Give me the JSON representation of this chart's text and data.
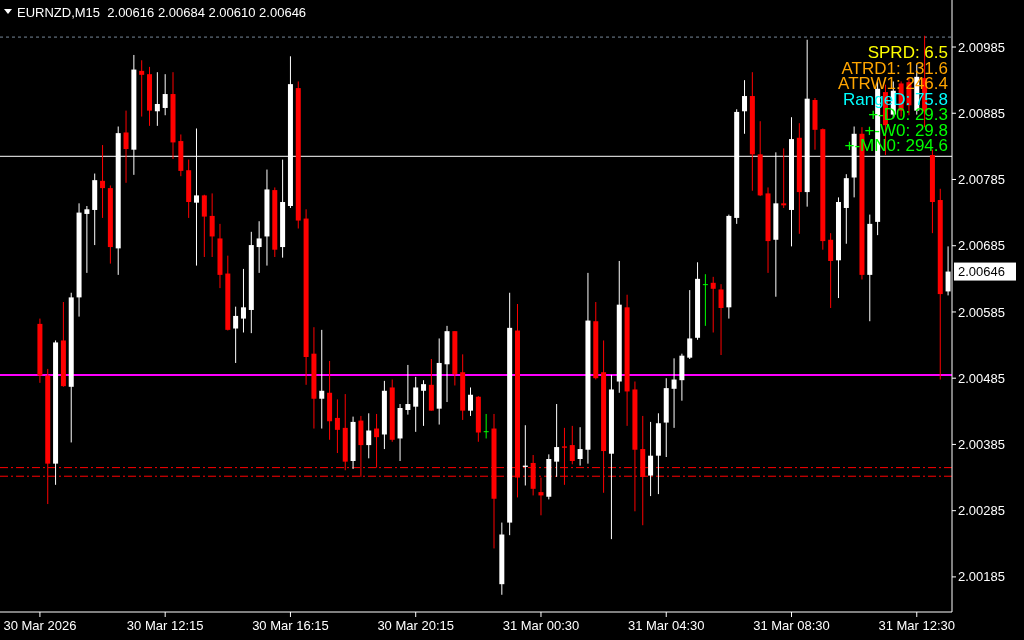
{
  "chart_data": {
    "type": "candlestick",
    "title": "EURNZD,M15  2.00616 2.00684 2.00610 2.00646",
    "categories": [
      "30 Mar 2026",
      null,
      null,
      null,
      null,
      null,
      null,
      null,
      null,
      null,
      null,
      null,
      null,
      null,
      null,
      null,
      "30 Mar 12:15",
      null,
      null,
      null,
      null,
      null,
      null,
      null,
      null,
      null,
      null,
      null,
      null,
      null,
      null,
      null,
      "30 Mar 16:15",
      null,
      null,
      null,
      null,
      null,
      null,
      null,
      null,
      null,
      null,
      null,
      null,
      null,
      null,
      null,
      "30 Mar 20:15",
      null,
      null,
      null,
      null,
      null,
      null,
      null,
      null,
      null,
      null,
      null,
      null,
      null,
      null,
      null,
      "31 Mar 00:30",
      null,
      null,
      null,
      null,
      null,
      null,
      null,
      null,
      null,
      null,
      null,
      null,
      null,
      null,
      null,
      "31 Mar 04:30",
      null,
      null,
      null,
      null,
      null,
      null,
      null,
      null,
      null,
      null,
      null,
      null,
      null,
      null,
      null,
      "31 Mar 08:30",
      null,
      null,
      null,
      null,
      null,
      null,
      null,
      null,
      null,
      null,
      null,
      null,
      null,
      null,
      null,
      "31 Mar 12:30",
      null,
      null,
      null,
      null
    ],
    "ohlc": [
      [
        2.00567,
        2.00575,
        2.00478,
        2.00489
      ],
      [
        2.00489,
        2.00499,
        2.00295,
        2.00356
      ],
      [
        2.00356,
        2.00542,
        2.00324,
        2.00539
      ],
      [
        2.00542,
        2.006,
        2.00472,
        2.00473
      ],
      [
        2.00472,
        2.00614,
        2.00388,
        2.00607
      ],
      [
        2.00607,
        2.00749,
        2.00578,
        2.00735
      ],
      [
        2.00733,
        2.00745,
        2.00644,
        2.0074
      ],
      [
        2.00739,
        2.00794,
        2.00686,
        2.00784
      ],
      [
        2.00783,
        2.00837,
        2.00727,
        2.00772
      ],
      [
        2.00772,
        2.00776,
        2.00658,
        2.00683
      ],
      [
        2.00681,
        2.00865,
        2.00641,
        2.00855
      ],
      [
        2.00856,
        2.00889,
        2.0078,
        2.00831
      ],
      [
        2.0083,
        2.00973,
        2.00792,
        2.00951
      ],
      [
        2.00949,
        2.00965,
        2.0088,
        2.00943
      ],
      [
        2.00944,
        2.00955,
        2.00866,
        2.00889
      ],
      [
        2.00888,
        2.00947,
        2.00866,
        2.00899
      ],
      [
        2.00893,
        2.00944,
        2.00882,
        2.00914
      ],
      [
        2.00914,
        2.00947,
        2.00816,
        2.00841
      ],
      [
        2.00843,
        2.00853,
        2.0079,
        2.00798
      ],
      [
        2.00799,
        2.00815,
        2.00727,
        2.00751
      ],
      [
        2.0075,
        2.00862,
        2.00655,
        2.00761
      ],
      [
        2.00761,
        2.00762,
        2.00668,
        2.00729
      ],
      [
        2.0073,
        2.00764,
        2.00668,
        2.00699
      ],
      [
        2.00696,
        2.00718,
        2.00621,
        2.00641
      ],
      [
        2.00643,
        2.0067,
        2.00557,
        2.00558
      ],
      [
        2.0056,
        2.00593,
        2.00508,
        2.00579
      ],
      [
        2.00575,
        2.0065,
        2.00554,
        2.00592
      ],
      [
        2.00588,
        2.00706,
        2.00553,
        2.00686
      ],
      [
        2.00683,
        2.00722,
        2.00644,
        2.00696
      ],
      [
        2.00699,
        2.008,
        2.00655,
        2.0077
      ],
      [
        2.00769,
        2.00773,
        2.00668,
        2.00679
      ],
      [
        2.00683,
        2.00815,
        2.00667,
        2.00751
      ],
      [
        2.00745,
        2.00971,
        2.00742,
        2.00929
      ],
      [
        2.00923,
        2.00933,
        2.00711,
        2.00723
      ],
      [
        2.00726,
        2.0074,
        2.00475,
        2.00517
      ],
      [
        2.00522,
        2.00562,
        2.00409,
        2.00454
      ],
      [
        2.00454,
        2.00558,
        2.00409,
        2.00466
      ],
      [
        2.00463,
        2.00511,
        2.00392,
        2.0042
      ],
      [
        2.00425,
        2.00453,
        2.00372,
        2.00407
      ],
      [
        2.0041,
        2.00461,
        2.00346,
        2.00359
      ],
      [
        2.0036,
        2.00427,
        2.00348,
        2.00419
      ],
      [
        2.00421,
        2.00428,
        2.00336,
        2.00384
      ],
      [
        2.00384,
        2.00432,
        2.00364,
        2.00406
      ],
      [
        2.00409,
        2.00431,
        2.0035,
        2.00396
      ],
      [
        2.004,
        2.00481,
        2.00378,
        2.00466
      ],
      [
        2.00471,
        2.00483,
        2.00389,
        2.00392
      ],
      [
        2.00394,
        2.00446,
        2.0036,
        2.0044
      ],
      [
        2.00437,
        2.00505,
        2.0043,
        2.00446
      ],
      [
        2.00442,
        2.00487,
        2.00404,
        2.00471
      ],
      [
        2.00466,
        2.00482,
        2.00413,
        2.00476
      ],
      [
        2.00475,
        2.00514,
        2.00436,
        2.00436
      ],
      [
        2.00439,
        2.00545,
        2.00415,
        2.00508
      ],
      [
        2.00506,
        2.00564,
        2.00449,
        2.00556
      ],
      [
        2.00556,
        2.00556,
        2.00474,
        2.00491
      ],
      [
        2.00494,
        2.00521,
        2.00422,
        2.00436
      ],
      [
        2.00436,
        2.00471,
        2.00428,
        2.0046
      ],
      [
        2.00457,
        2.00458,
        2.00389,
        2.00403
      ],
      [
        2.00405,
        2.00431,
        2.00394,
        2.00405
      ],
      [
        2.00409,
        2.00431,
        2.00228,
        2.00303
      ],
      [
        2.00174,
        2.00267,
        2.00158,
        2.00249
      ],
      [
        2.00267,
        2.00614,
        2.00248,
        2.00561
      ],
      [
        2.00557,
        2.00597,
        2.00305,
        2.00335
      ],
      [
        2.00351,
        2.00414,
        2.00323,
        2.00353
      ],
      [
        2.00357,
        2.00369,
        2.00308,
        2.00318
      ],
      [
        2.00313,
        2.00335,
        2.00278,
        2.00308
      ],
      [
        2.00306,
        2.0037,
        2.00302,
        2.00363
      ],
      [
        2.00359,
        2.00446,
        2.00336,
        2.00381
      ],
      [
        2.00382,
        2.0041,
        2.00324,
        2.0038
      ],
      [
        2.00384,
        2.00413,
        2.00355,
        2.0036
      ],
      [
        2.00363,
        2.00411,
        2.00353,
        2.00378
      ],
      [
        2.00377,
        2.00644,
        2.00356,
        2.00572
      ],
      [
        2.00571,
        2.006,
        2.00483,
        2.00485
      ],
      [
        2.00494,
        2.00542,
        2.00312,
        2.00375
      ],
      [
        2.00371,
        2.0049,
        2.00242,
        2.00468
      ],
      [
        2.0048,
        2.00662,
        2.00463,
        2.00596
      ],
      [
        2.00592,
        2.00611,
        2.00413,
        2.00465
      ],
      [
        2.00468,
        2.0048,
        2.00284,
        2.00377
      ],
      [
        2.00378,
        2.00428,
        2.00263,
        2.00336
      ],
      [
        2.00338,
        2.00419,
        2.00307,
        2.00368
      ],
      [
        2.00368,
        2.00432,
        2.0031,
        2.00417
      ],
      [
        2.00418,
        2.00485,
        2.00366,
        2.0047
      ],
      [
        2.00469,
        2.00515,
        2.0041,
        2.00483
      ],
      [
        2.00482,
        2.00522,
        2.00451,
        2.00519
      ],
      [
        2.00516,
        2.00618,
        2.00514,
        2.00545
      ],
      [
        2.00546,
        2.0066,
        2.00543,
        2.00635
      ],
      [
        2.00627,
        2.00642,
        2.00564,
        2.00627
      ],
      [
        2.00629,
        2.00638,
        2.00554,
        2.0062
      ],
      [
        2.00619,
        2.00627,
        2.0052,
        2.00591
      ],
      [
        2.00592,
        2.00732,
        2.00575,
        2.0073
      ],
      [
        2.00727,
        2.00891,
        2.00718,
        2.00887
      ],
      [
        2.00888,
        2.00935,
        2.00854,
        2.00911
      ],
      [
        2.00911,
        2.00947,
        2.00768,
        2.00823
      ],
      [
        2.00823,
        2.00873,
        2.0076,
        2.00761
      ],
      [
        2.00764,
        2.00773,
        2.00644,
        2.00692
      ],
      [
        2.00694,
        2.00826,
        2.00608,
        2.00749
      ],
      [
        2.00749,
        2.00832,
        2.00742,
        2.00746
      ],
      [
        2.00739,
        2.00879,
        2.00684,
        2.00846
      ],
      [
        2.00848,
        2.0087,
        2.00703,
        2.00766
      ],
      [
        2.00766,
        2.00996,
        2.00744,
        2.00907
      ],
      [
        2.00905,
        2.00908,
        2.0083,
        2.0086
      ],
      [
        2.00861,
        2.00862,
        2.00679,
        2.00692
      ],
      [
        2.00694,
        2.00704,
        2.00591,
        2.00662
      ],
      [
        2.00663,
        2.00758,
        2.00606,
        2.00751
      ],
      [
        2.00742,
        2.00793,
        2.00688,
        2.00787
      ],
      [
        2.00788,
        2.00865,
        2.00758,
        2.00854
      ],
      [
        2.00854,
        2.00864,
        2.00634,
        2.00641
      ],
      [
        2.00641,
        2.00732,
        2.00571,
        2.00718
      ],
      [
        2.00721,
        2.00933,
        2.00701,
        2.00922
      ],
      [
        2.00917,
        2.00928,
        2.00822,
        2.00867
      ],
      [
        2.00883,
        2.00933,
        2.00878,
        2.00919
      ],
      [
        2.0093,
        2.00933,
        2.0088,
        2.00889
      ],
      [
        2.00932,
        2.00938,
        2.00882,
        2.00897
      ],
      [
        2.00889,
        2.00958,
        2.00883,
        2.0094
      ],
      [
        2.00938,
        2.01002,
        2.00864,
        2.00888
      ],
      [
        2.00822,
        2.0083,
        2.00704,
        2.00751
      ],
      [
        2.00754,
        2.00771,
        2.00483,
        2.00612
      ],
      [
        2.00616,
        2.00684,
        2.0061,
        2.00646
      ]
    ],
    "ylim": [
      2.00132,
      2.01056
    ],
    "yticks": [
      2.00985,
      2.00885,
      2.00785,
      2.00685,
      2.00585,
      2.00485,
      2.00385,
      2.00285,
      2.00185
    ],
    "ref_lines": [
      {
        "axis": "y",
        "value": 2.01,
        "color": "#778899",
        "line_style": "dotted"
      },
      {
        "axis": "y",
        "value": 2.0082,
        "color": "#ffffff",
        "line_style": "solid"
      },
      {
        "axis": "y",
        "value": 2.0049,
        "color": "#ff00ff",
        "line_style": "solid"
      },
      {
        "axis": "y",
        "value": 2.0035,
        "color": "#ff0000",
        "line_style": "dashed"
      },
      {
        "axis": "y",
        "value": 2.00337,
        "color": "#ff0000",
        "line_style": "dashed"
      }
    ],
    "annotations": [
      "SPRD: 6.5",
      "ATRD1: 131.6",
      "ATRW1: 246.4",
      "RangeD: 75.8",
      "+-D0: 29.3",
      "+-W0: 29.8",
      "+-MN0: 294.6",
      "2.00646"
    ]
  }
}
